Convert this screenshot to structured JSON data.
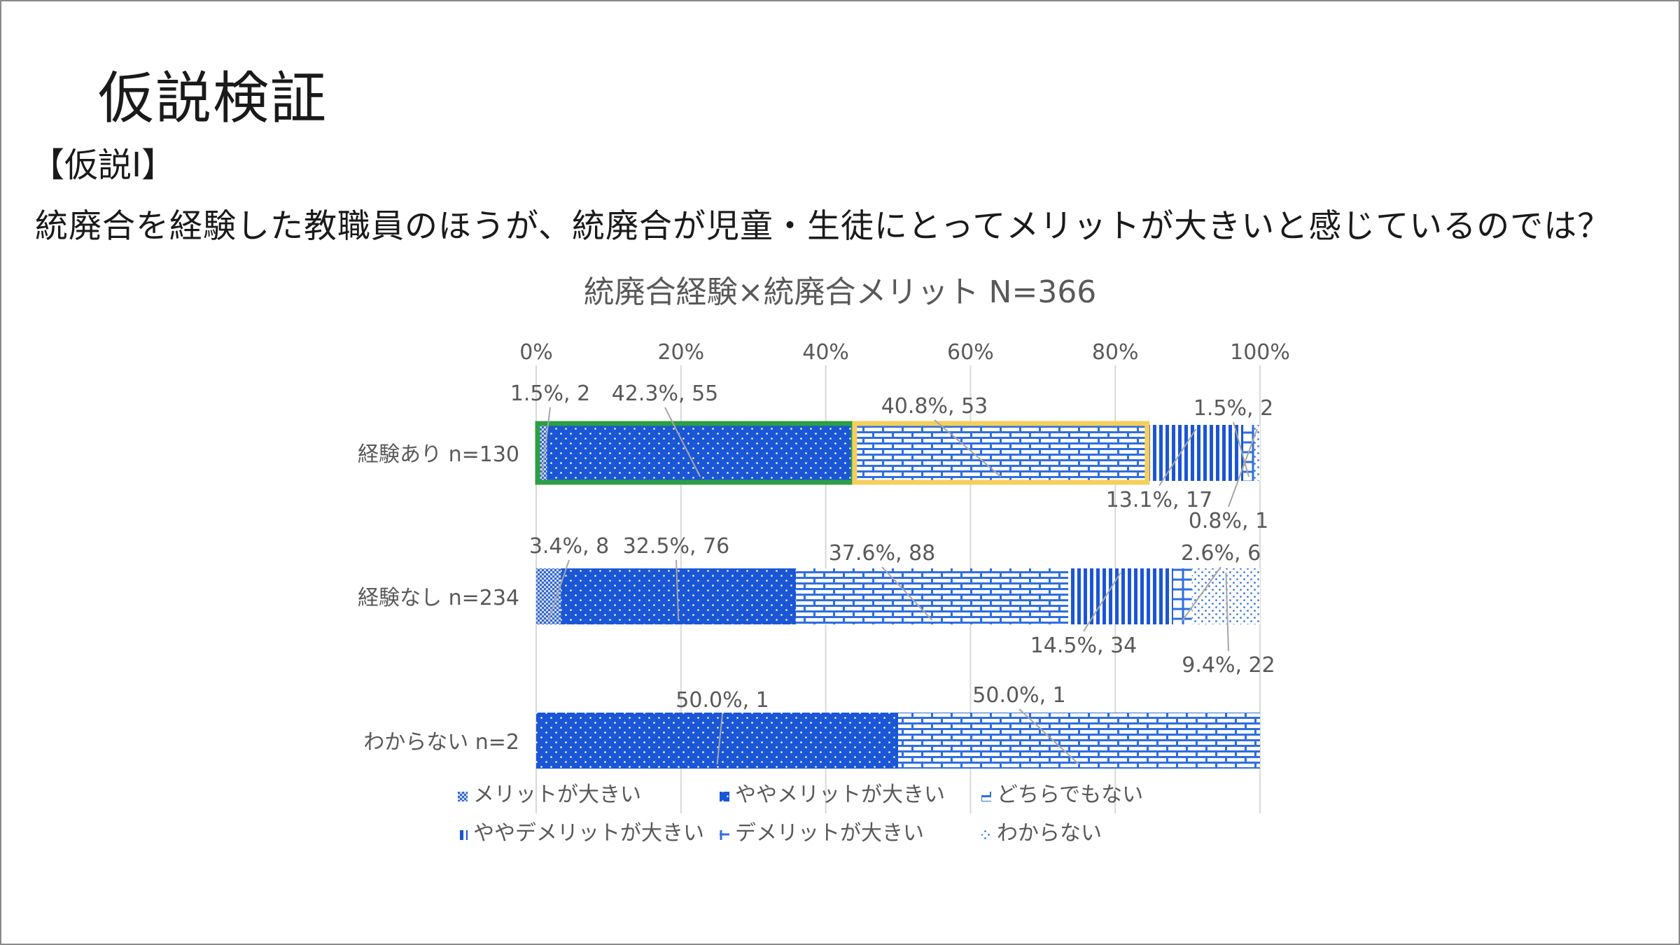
{
  "slide": {
    "title": "仮説検証",
    "hypothesis_label": "【仮説Ⅰ】",
    "hypothesis_text": "統廃合を経験した教職員のほうが、統廃合が児童・生徒にとってメリットが大きいと感じているのでは？"
  },
  "chart_data": {
    "type": "bar",
    "orientation": "horizontal",
    "stacked": "percent",
    "title": "統廃合経験×統廃合メリット N=366",
    "xlim": [
      0,
      100
    ],
    "x_ticks": [
      "0%",
      "20%",
      "40%",
      "60%",
      "80%",
      "100%"
    ],
    "grid": true,
    "legend_position": "bottom",
    "categories": [
      "経験あり n=130",
      "経験なし n=234",
      "わからない n=2"
    ],
    "series": [
      {
        "name": "メリットが大きい",
        "percent": [
          1.5,
          3.4,
          0
        ],
        "counts": [
          2,
          8,
          0
        ],
        "labels": [
          "1.5%, 2",
          "3.4%, 8",
          ""
        ],
        "color": "#3366cc"
      },
      {
        "name": "ややメリットが大きい",
        "percent": [
          42.3,
          32.5,
          50.0
        ],
        "counts": [
          55,
          76,
          1
        ],
        "labels": [
          "42.3%, 55",
          "32.5%, 76",
          "50.0%, 1"
        ],
        "color": "#1a56d6"
      },
      {
        "name": "どちらでもない",
        "percent": [
          40.8,
          37.6,
          50.0
        ],
        "counts": [
          53,
          88,
          1
        ],
        "labels": [
          "40.8%, 53",
          "37.6%, 88",
          "50.0%, 1"
        ],
        "color": "#2f6ee0"
      },
      {
        "name": "ややデメリットが大きい",
        "percent": [
          13.1,
          14.5,
          0
        ],
        "counts": [
          17,
          34,
          0
        ],
        "labels": [
          "13.1%, 17",
          "14.5%, 34",
          ""
        ],
        "color": "#1a56d6"
      },
      {
        "name": "デメリットが大きい",
        "percent": [
          1.5,
          2.6,
          0
        ],
        "counts": [
          2,
          6,
          0
        ],
        "labels": [
          "1.5%, 2",
          "2.6%, 6",
          ""
        ],
        "color": "#2f6ee0"
      },
      {
        "name": "わからない",
        "percent": [
          0.8,
          9.4,
          0
        ],
        "counts": [
          1,
          22,
          0
        ],
        "labels": [
          "0.8%, 1",
          "9.4%, 22",
          ""
        ],
        "color": "#3b78e7"
      }
    ],
    "highlight_colors": {
      "green": "#2e9e44",
      "yellow": "#f5cf5c"
    }
  }
}
